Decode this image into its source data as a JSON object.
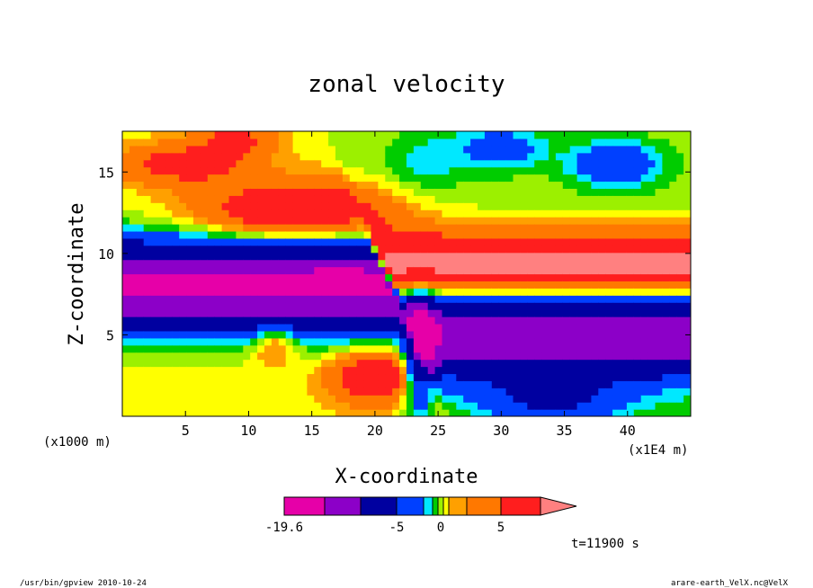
{
  "chart_data": {
    "type": "heatmap",
    "title": "zonal velocity",
    "xlabel": "X-coordinate",
    "ylabel": "Z-coordinate",
    "x_unit_label": "(x1E4 m)",
    "y_unit_label": "(x1000 m)",
    "xlim": [
      0,
      45
    ],
    "ylim": [
      0,
      17.5
    ],
    "x_ticks": [
      5,
      10,
      15,
      20,
      25,
      30,
      35,
      40
    ],
    "y_ticks": [
      5,
      10,
      15
    ],
    "time_label": "t=11900 s",
    "colorbar": {
      "tick_labels": [
        "-19.6",
        "-5",
        "0",
        "5"
      ],
      "tick_values": [
        -19.6,
        -5,
        0,
        5
      ],
      "levels": [
        -19.6,
        -15,
        -10,
        -5,
        -2.5,
        -1.5,
        -0.5,
        0.5,
        1.5,
        2.5,
        5,
        10,
        15
      ],
      "colors": [
        "#e600a8",
        "#8c00c8",
        "#0000a0",
        "#0040ff",
        "#00e8ff",
        "#00cc00",
        "#9cf000",
        "#ffff00",
        "#ffa000",
        "#ff7800",
        "#ff1e1e",
        "#ff8080"
      ]
    }
  },
  "footer": {
    "left": "/usr/bin/gpview  2010-10-24",
    "right": "arare-earth_VelX.nc@VelX"
  }
}
